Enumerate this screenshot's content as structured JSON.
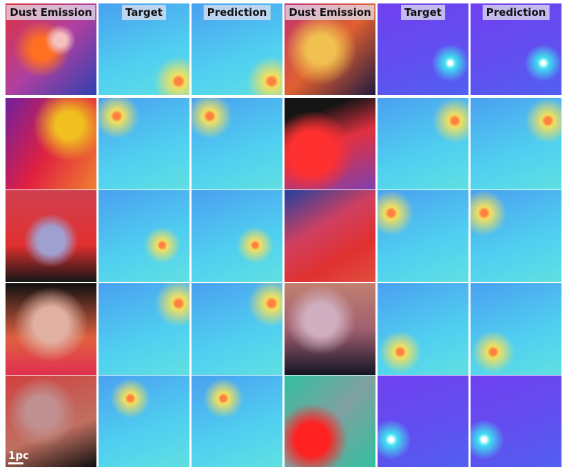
{
  "columns": [
    {
      "header": "Dust Emission"
    },
    {
      "header": "Target"
    },
    {
      "header": "Prediction"
    },
    {
      "header": "Dust Emission"
    },
    {
      "header": "Target"
    },
    {
      "header": "Prediction"
    }
  ],
  "scale_bar": {
    "label": "1pc"
  }
}
